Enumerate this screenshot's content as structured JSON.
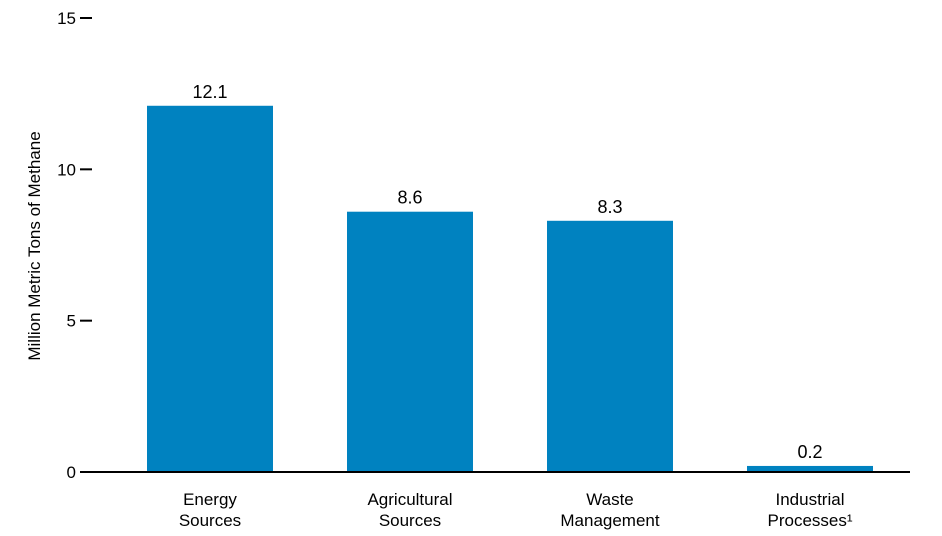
{
  "chart_data": {
    "type": "bar",
    "categories": [
      [
        "Energy",
        "Sources"
      ],
      [
        "Agricultural",
        "Sources"
      ],
      [
        "Waste",
        "Management"
      ],
      [
        "Industrial",
        "Processes¹"
      ]
    ],
    "values": [
      12.1,
      8.6,
      8.3,
      0.2
    ],
    "data_labels": [
      "12.1",
      "8.6",
      "8.3",
      "0.2"
    ],
    "ylabel": "Million Metric Tons of Methane",
    "xlabel": "",
    "title": "",
    "ylim": [
      0,
      15
    ],
    "yticks": [
      0,
      5,
      10,
      15
    ],
    "bar_color": "#0082C0",
    "grid": false
  }
}
